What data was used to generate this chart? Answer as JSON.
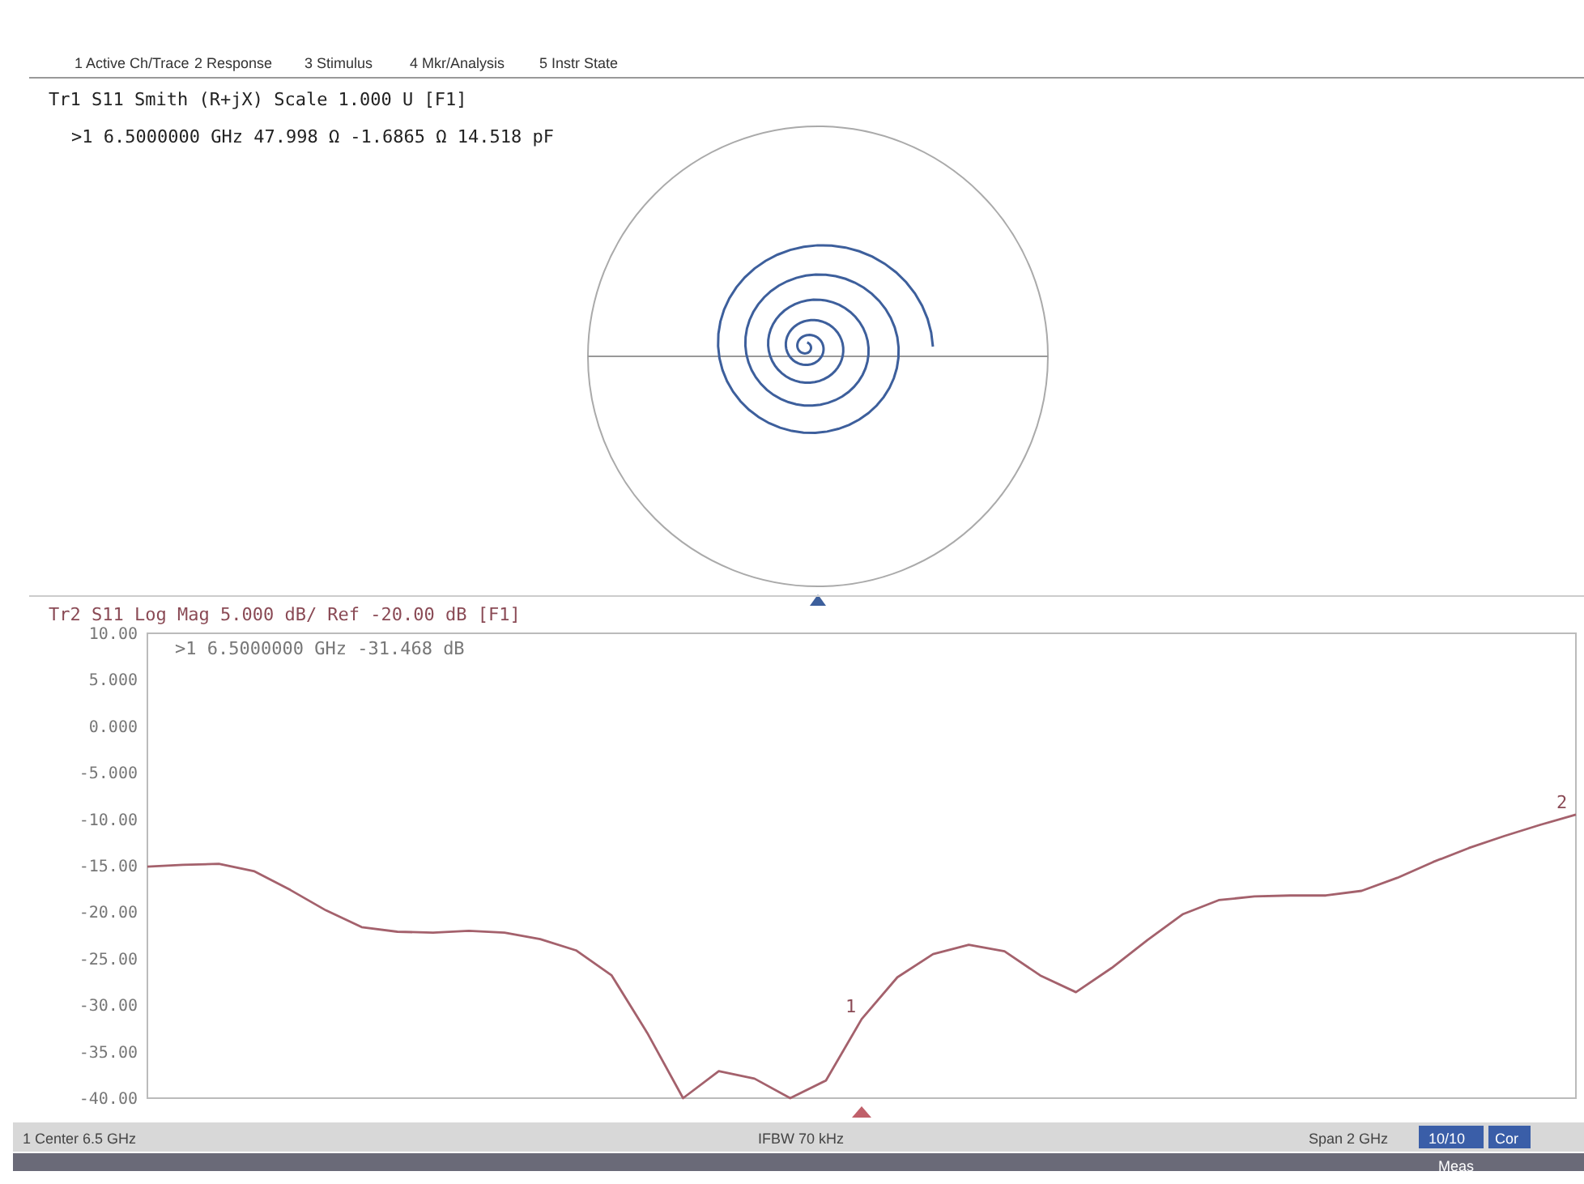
{
  "chart_data": [
    {
      "type": "other",
      "title": "Tr1 S11 Smith (R+jX) Scale 1.000 U [F1]",
      "annotations": [
        "1 Active Ch/Trace",
        "2 Response",
        "3 Stimulus",
        "4 Mkr/Analysis",
        "5 Instr State",
        ">1  6.5000000 GHz  47.998 Ω -1.6865 Ω  14.518 pF"
      ],
      "color": "#3d5f9c"
    },
    {
      "type": "line",
      "title": "Tr2 S11 Log Mag 5.000 dB/ Ref -20.00 dB [F1]",
      "categories": [
        null,
        null,
        null,
        null,
        null,
        null,
        null,
        null,
        null,
        null,
        null,
        null,
        null,
        null,
        null,
        null,
        null,
        null,
        null,
        null,
        null,
        null,
        null,
        null,
        null,
        null,
        null,
        null,
        null,
        null,
        null,
        null,
        null,
        null,
        null,
        null,
        null,
        null,
        null,
        null,
        null
      ],
      "series": [
        {
          "color": "#a4616c",
          "values": [
            -15.1,
            -14.9,
            -14.8,
            -15.6,
            -17.6,
            -19.8,
            -21.6,
            -22.1,
            -22.2,
            -22.0,
            -22.2,
            -22.9,
            -24.1,
            -26.8,
            -33.0,
            -40.0,
            -37.1,
            -37.9,
            -40.0,
            -38.1,
            -31.5,
            -27.0,
            -24.5,
            -23.5,
            -24.2,
            -26.8,
            -28.6,
            -26.0,
            -23.0,
            -20.2,
            -18.7,
            -18.3,
            -18.2,
            -18.2,
            -17.7,
            -16.3,
            -14.6,
            -13.1,
            -11.8,
            -10.6,
            -9.5
          ]
        }
      ],
      "ylim": [
        -40,
        10
      ],
      "yticks": [
        {
          "value": 10,
          "label": "10.00"
        },
        {
          "value": 5,
          "label": "5.000"
        },
        {
          "value": 0,
          "label": "0.000"
        },
        {
          "value": -5,
          "label": "-5.000"
        },
        {
          "value": -10,
          "label": "-10.00"
        },
        {
          "value": -15,
          "label": "-15.00"
        },
        {
          "value": -20,
          "label": "-20.00"
        },
        {
          "value": -25,
          "label": "-25.00"
        },
        {
          "value": -30,
          "label": "-30.00"
        },
        {
          "value": -35,
          "label": "-35.00"
        },
        {
          "value": -40,
          "label": "-40.00"
        }
      ],
      "tick_labels": "y",
      "annotations": [
        ">1  6.5000000 GHz -31.468 dB",
        "1",
        "2",
        "1  Center 6.5 GHz",
        "IFBW 70 kHz",
        "Span 2 GHz",
        "10/10",
        "Cor",
        "Meas"
      ]
    }
  ]
}
